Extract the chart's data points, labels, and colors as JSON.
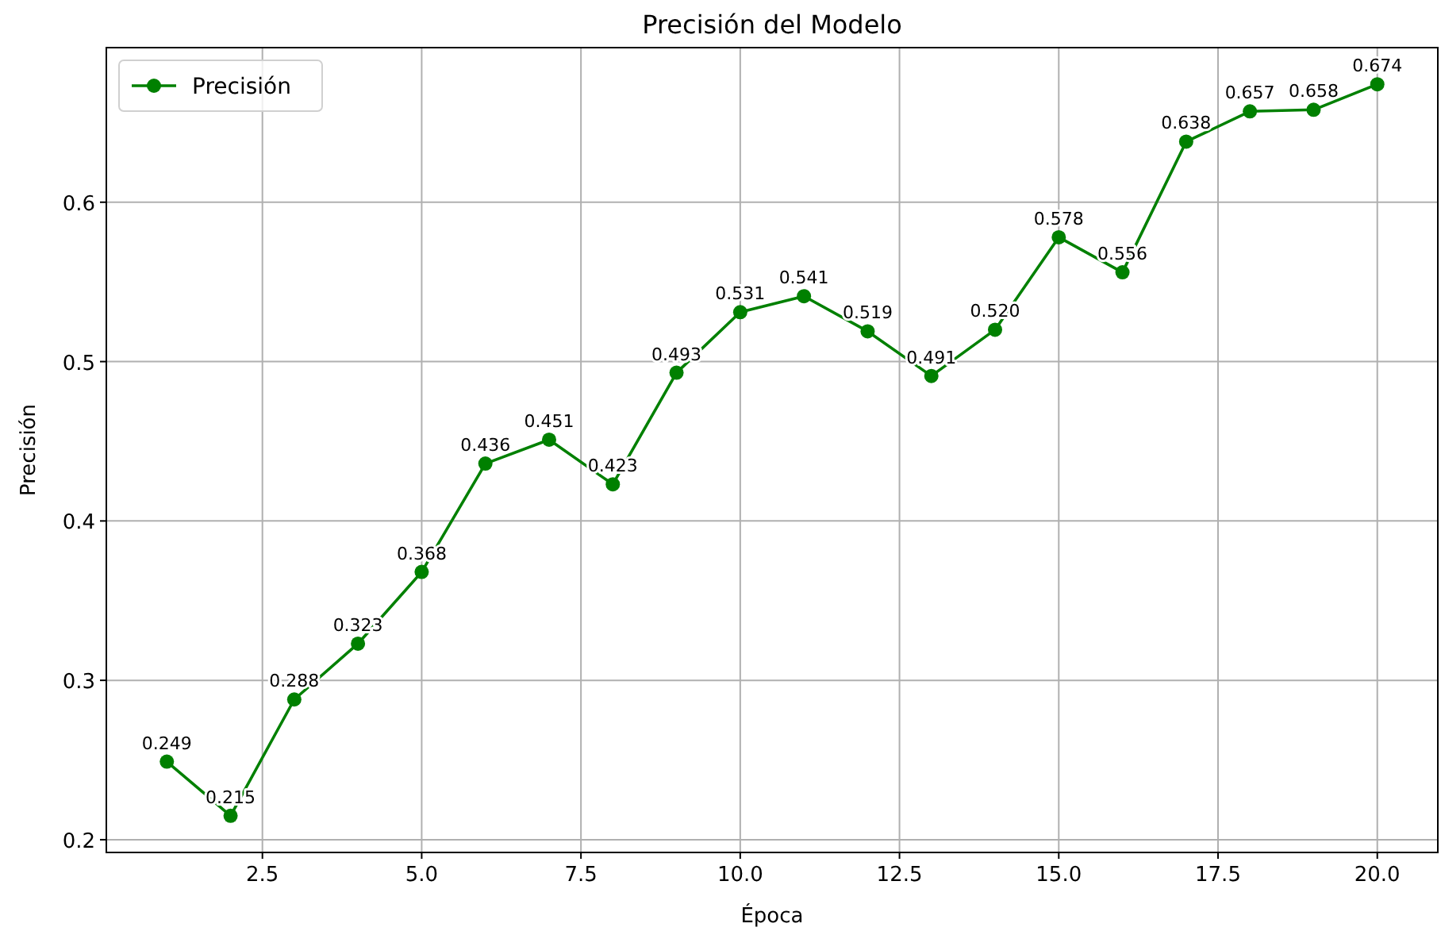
{
  "chart_data": {
    "type": "line",
    "title": "Precisión del Modelo",
    "xlabel": "Época",
    "ylabel": "Precisión",
    "x": [
      1,
      2,
      3,
      4,
      5,
      6,
      7,
      8,
      9,
      10,
      11,
      12,
      13,
      14,
      15,
      16,
      17,
      18,
      19,
      20
    ],
    "series": [
      {
        "name": "Precisión",
        "color": "#008000",
        "values": [
          0.249,
          0.215,
          0.288,
          0.323,
          0.368,
          0.436,
          0.451,
          0.423,
          0.493,
          0.531,
          0.541,
          0.519,
          0.491,
          0.52,
          0.578,
          0.556,
          0.638,
          0.657,
          0.658,
          0.674
        ],
        "value_labels": [
          "0.249",
          "0.215",
          "0.288",
          "0.323",
          "0.368",
          "0.436",
          "0.451",
          "0.423",
          "0.493",
          "0.531",
          "0.541",
          "0.519",
          "0.491",
          "0.520",
          "0.578",
          "0.556",
          "0.638",
          "0.657",
          "0.658",
          "0.674"
        ]
      }
    ],
    "xlim": [
      0.05,
      20.95
    ],
    "xticks": [
      {
        "value": 2.5,
        "label": "2.5"
      },
      {
        "value": 5,
        "label": "5.0"
      },
      {
        "value": 7.5,
        "label": "7.5"
      },
      {
        "value": 10,
        "label": "10.0"
      },
      {
        "value": 12.5,
        "label": "12.5"
      },
      {
        "value": 15,
        "label": "15.0"
      },
      {
        "value": 17.5,
        "label": "17.5"
      },
      {
        "value": 20,
        "label": "20.0"
      }
    ],
    "ylim": [
      0.192,
      0.697
    ],
    "yticks": [
      0.2,
      0.3,
      0.4,
      0.5,
      0.6
    ],
    "grid": true,
    "legend": "top left",
    "marker": "circle",
    "line_style": "solid"
  }
}
